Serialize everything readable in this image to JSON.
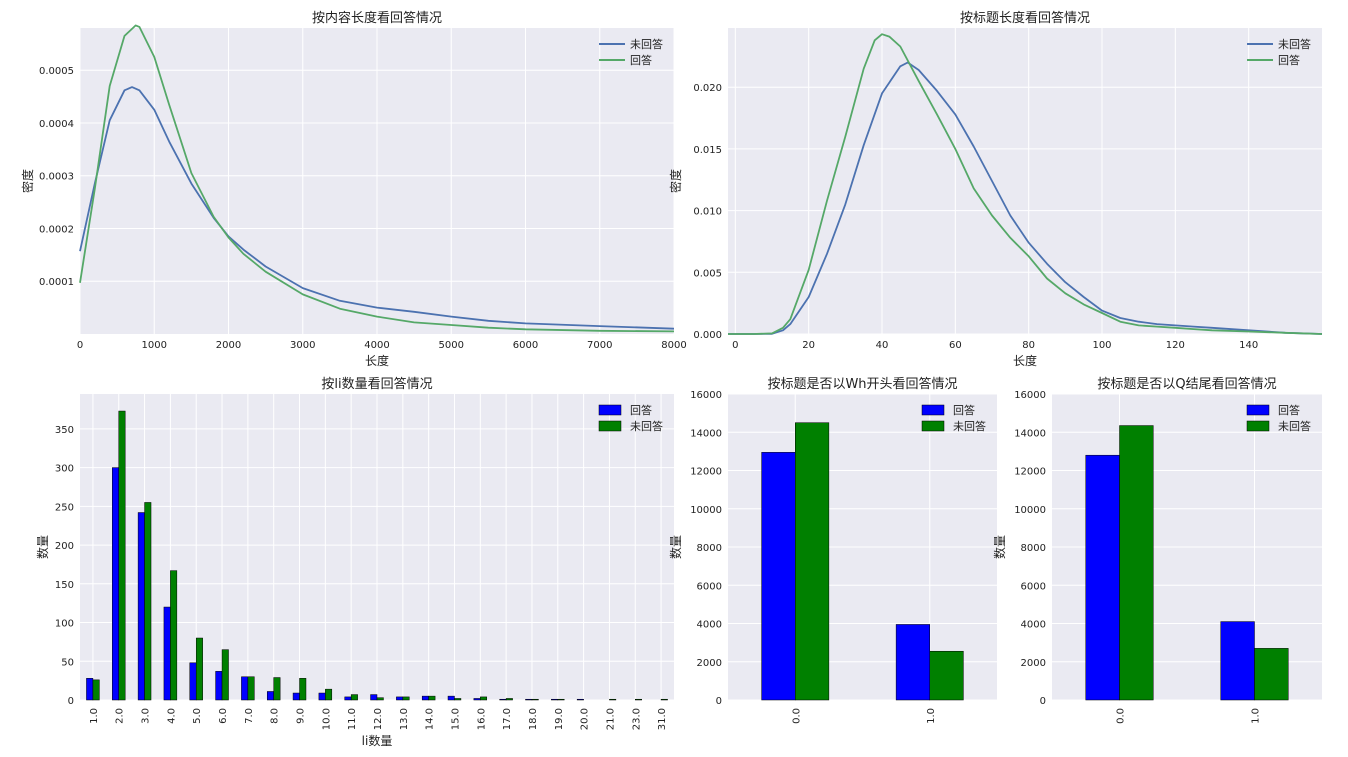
{
  "chart_data": [
    {
      "type": "line",
      "title": "按内容长度看回答情况",
      "xlabel": "长度",
      "ylabel": "密度",
      "xlim": [
        0,
        8000
      ],
      "ylim": [
        0,
        0.00058
      ],
      "xticks": [
        0,
        1000,
        2000,
        3000,
        4000,
        5000,
        6000,
        7000,
        8000
      ],
      "yticks": [
        0.0001,
        0.0002,
        0.0003,
        0.0004,
        0.0005
      ],
      "ytick_labels": [
        "0.0001",
        "0.0002",
        "0.0003",
        "0.0004",
        "0.0005"
      ],
      "grid": true,
      "legend_position": "top-right",
      "series": [
        {
          "name": "未回答",
          "color": "#4C72B0",
          "x": [
            0,
            200,
            400,
            600,
            700,
            800,
            1000,
            1200,
            1500,
            1800,
            2000,
            2200,
            2500,
            3000,
            3500,
            4000,
            4500,
            5000,
            5500,
            6000,
            7000,
            8000
          ],
          "y": [
            0.000157,
            0.000285,
            0.000405,
            0.000462,
            0.000468,
            0.000462,
            0.000425,
            0.000365,
            0.000285,
            0.00022,
            0.000185,
            0.00016,
            0.000128,
            8.7e-05,
            6.3e-05,
            5e-05,
            4.2e-05,
            3.3e-05,
            2.5e-05,
            2e-05,
            1.5e-05,
            1e-05
          ]
        },
        {
          "name": "回答",
          "color": "#55A868",
          "x": [
            0,
            200,
            400,
            600,
            750,
            800,
            1000,
            1200,
            1500,
            1800,
            2000,
            2200,
            2500,
            3000,
            3500,
            4000,
            4500,
            5000,
            5500,
            6000,
            7000,
            8000
          ],
          "y": [
            9.7e-05,
            0.000275,
            0.00047,
            0.000565,
            0.000585,
            0.000582,
            0.000525,
            0.000435,
            0.000305,
            0.000222,
            0.000183,
            0.000152,
            0.000118,
            7.5e-05,
            4.8e-05,
            3.3e-05,
            2.2e-05,
            1.7e-05,
            1.2e-05,
            9e-06,
            6e-06,
            5e-06
          ]
        }
      ]
    },
    {
      "type": "line",
      "title": "按标题长度看回答情况",
      "xlabel": "长度",
      "ylabel": "密度",
      "xlim": [
        -2,
        160
      ],
      "ylim": [
        0,
        0.0248
      ],
      "xticks": [
        0,
        20,
        40,
        60,
        80,
        100,
        120,
        140
      ],
      "yticks": [
        0,
        0.005,
        0.01,
        0.015,
        0.02
      ],
      "ytick_labels": [
        "0.000",
        "0.005",
        "0.010",
        "0.015",
        "0.020"
      ],
      "grid": true,
      "legend_position": "top-right",
      "series": [
        {
          "name": "未回答",
          "color": "#4C72B0",
          "x": [
            -2,
            5,
            10,
            13,
            15,
            20,
            25,
            30,
            35,
            40,
            45,
            47,
            50,
            55,
            60,
            65,
            70,
            75,
            80,
            85,
            90,
            95,
            100,
            105,
            110,
            115,
            120,
            125,
            130,
            140,
            150,
            160
          ],
          "y": [
            0,
            0,
            2e-05,
            0.0003,
            0.0008,
            0.003,
            0.0065,
            0.0105,
            0.0153,
            0.0195,
            0.0217,
            0.022,
            0.0214,
            0.0197,
            0.0178,
            0.0152,
            0.0124,
            0.0096,
            0.0074,
            0.0057,
            0.0042,
            0.003,
            0.0019,
            0.0013,
            0.001,
            0.0008,
            0.0007,
            0.0006,
            0.0005,
            0.0003,
            0.0001,
            0
          ]
        },
        {
          "name": "回答",
          "color": "#55A868",
          "x": [
            -2,
            5,
            10,
            13,
            15,
            20,
            25,
            30,
            35,
            38,
            40,
            42,
            45,
            50,
            55,
            60,
            65,
            70,
            75,
            80,
            85,
            90,
            95,
            100,
            105,
            110,
            115,
            120,
            125,
            130,
            140,
            150,
            160
          ],
          "y": [
            0,
            0,
            5e-05,
            0.0005,
            0.0012,
            0.0052,
            0.0108,
            0.016,
            0.0215,
            0.0238,
            0.0243,
            0.0241,
            0.0233,
            0.0205,
            0.0178,
            0.015,
            0.0118,
            0.0096,
            0.0078,
            0.0063,
            0.0045,
            0.0033,
            0.0024,
            0.0017,
            0.001,
            0.0007,
            0.0006,
            0.0005,
            0.0004,
            0.0003,
            0.0002,
            0.0001,
            0
          ]
        }
      ]
    },
    {
      "type": "bar",
      "title": "按li数量看回答情况",
      "xlabel": "li数量",
      "ylabel": "数量",
      "ylim": [
        0,
        395
      ],
      "yticks": [
        0,
        50,
        100,
        150,
        200,
        250,
        300,
        350
      ],
      "grid": true,
      "legend_position": "top-right",
      "categories": [
        "1.0",
        "2.0",
        "3.0",
        "4.0",
        "5.0",
        "6.0",
        "7.0",
        "8.0",
        "9.0",
        "10.0",
        "11.0",
        "12.0",
        "13.0",
        "14.0",
        "15.0",
        "16.0",
        "17.0",
        "18.0",
        "19.0",
        "20.0",
        "21.0",
        "23.0",
        "31.0"
      ],
      "series": [
        {
          "name": "回答",
          "color": "#0000ff",
          "values": [
            28,
            300,
            242,
            120,
            48,
            37,
            30,
            11,
            9,
            9,
            4,
            7,
            4,
            5,
            5,
            2,
            1,
            1,
            1,
            1,
            0,
            0,
            0
          ]
        },
        {
          "name": "未回答",
          "color": "#008000",
          "values": [
            26,
            373,
            255,
            167,
            80,
            65,
            30,
            29,
            28,
            14,
            7,
            3,
            4,
            5,
            2,
            4,
            2,
            1,
            1,
            0,
            1,
            1,
            1
          ]
        }
      ]
    },
    {
      "type": "bar",
      "title": "按标题是否以Wh开头看回答情况",
      "xlabel": "",
      "ylabel": "数量",
      "ylim": [
        0,
        16000
      ],
      "yticks": [
        0,
        2000,
        4000,
        6000,
        8000,
        10000,
        12000,
        14000,
        16000
      ],
      "grid": true,
      "legend_position": "top-right",
      "categories": [
        "0.0",
        "1.0"
      ],
      "series": [
        {
          "name": "回答",
          "color": "#0000ff",
          "values": [
            12950,
            3950
          ]
        },
        {
          "name": "未回答",
          "color": "#008000",
          "values": [
            14500,
            2550
          ]
        }
      ]
    },
    {
      "type": "bar",
      "title": "按标题是否以Q结尾看回答情况",
      "xlabel": "",
      "ylabel": "数量",
      "ylim": [
        0,
        16000
      ],
      "yticks": [
        0,
        2000,
        4000,
        6000,
        8000,
        10000,
        12000,
        14000,
        16000
      ],
      "grid": true,
      "legend_position": "top-right",
      "categories": [
        "0.0",
        "1.0"
      ],
      "series": [
        {
          "name": "回答",
          "color": "#0000ff",
          "values": [
            12800,
            4100
          ]
        },
        {
          "name": "未回答",
          "color": "#008000",
          "values": [
            14350,
            2700
          ]
        }
      ]
    }
  ],
  "style": {
    "panel_bg": "#EAEAF2",
    "grid_color": "#ffffff"
  }
}
